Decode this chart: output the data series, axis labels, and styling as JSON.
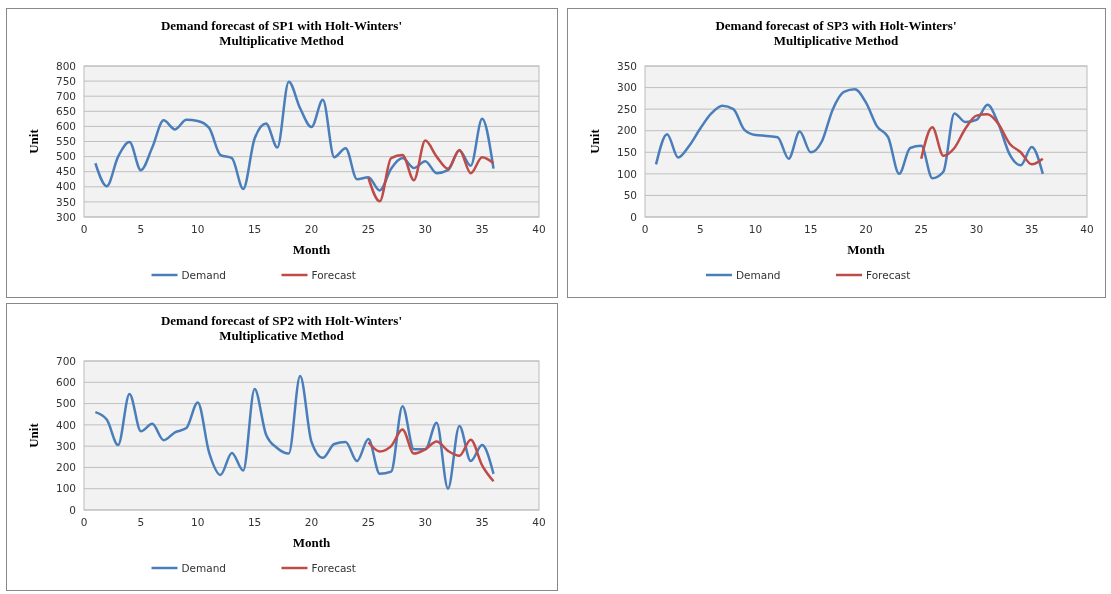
{
  "chart_data": [
    {
      "type": "line",
      "title": "Demand forecast of SP1 with Holt-Winters' Multiplicative Method",
      "xlabel": "Month",
      "ylabel": "Unit",
      "xlim": [
        0,
        40
      ],
      "xticks": [
        0,
        5,
        10,
        15,
        20,
        25,
        30,
        35,
        40
      ],
      "ylim": [
        300,
        800
      ],
      "yticks": [
        300,
        350,
        400,
        450,
        500,
        550,
        600,
        650,
        700,
        750,
        800
      ],
      "grid": "y",
      "legend": "bottom",
      "series": [
        {
          "name": "Demand",
          "color": "#4a7ebb",
          "x": [
            1,
            2,
            3,
            4,
            5,
            6,
            7,
            8,
            9,
            10,
            11,
            12,
            13,
            14,
            15,
            16,
            17,
            18,
            19,
            20,
            21,
            22,
            23,
            24,
            25,
            26,
            27,
            28,
            29,
            30,
            31,
            32,
            33,
            34,
            35,
            36
          ],
          "values": [
            478,
            402,
            500,
            548,
            455,
            530,
            620,
            590,
            622,
            618,
            595,
            505,
            495,
            393,
            560,
            610,
            530,
            748,
            660,
            598,
            688,
            498,
            528,
            425,
            432,
            388,
            460,
            495,
            462,
            485,
            445,
            455,
            520,
            470,
            625,
            460
          ]
        },
        {
          "name": "Forecast",
          "color": "#be4b48",
          "x": [
            25,
            26,
            27,
            28,
            29,
            30,
            31,
            32,
            33,
            34,
            35,
            36
          ],
          "values": [
            430,
            352,
            495,
            505,
            422,
            553,
            500,
            460,
            522,
            445,
            498,
            478
          ]
        }
      ]
    },
    {
      "type": "line",
      "title": "Demand forecast of SP3 with Holt-Winters' Multiplicative Method",
      "xlabel": "Month",
      "ylabel": "Unit",
      "xlim": [
        0,
        40
      ],
      "xticks": [
        0,
        5,
        10,
        15,
        20,
        25,
        30,
        35,
        40
      ],
      "ylim": [
        0,
        350
      ],
      "yticks": [
        0,
        50,
        100,
        150,
        200,
        250,
        300,
        350
      ],
      "grid": "y",
      "legend": "bottom",
      "series": [
        {
          "name": "Demand",
          "color": "#4a7ebb",
          "x": [
            1,
            2,
            3,
            4,
            5,
            6,
            7,
            8,
            9,
            10,
            11,
            12,
            13,
            14,
            15,
            16,
            17,
            18,
            19,
            20,
            21,
            22,
            23,
            24,
            25,
            26,
            27,
            28,
            29,
            30,
            31,
            32,
            33,
            34,
            35,
            36
          ],
          "values": [
            122,
            192,
            138,
            165,
            205,
            240,
            258,
            250,
            202,
            190,
            188,
            185,
            135,
            198,
            150,
            175,
            250,
            290,
            296,
            265,
            210,
            185,
            100,
            160,
            165,
            90,
            105,
            240,
            220,
            225,
            260,
            215,
            145,
            120,
            162,
            100
          ]
        },
        {
          "name": "Forecast",
          "color": "#be4b48",
          "x": [
            25,
            26,
            27,
            28,
            29,
            30,
            31,
            32,
            33,
            34,
            35,
            36
          ],
          "values": [
            135,
            208,
            142,
            160,
            205,
            235,
            238,
            215,
            170,
            150,
            122,
            135
          ]
        }
      ]
    },
    {
      "type": "line",
      "title": "Demand forecast of SP2 with Holt-Winters' Multiplicative Method",
      "xlabel": "Month",
      "ylabel": "Unit",
      "xlim": [
        0,
        40
      ],
      "xticks": [
        0,
        5,
        10,
        15,
        20,
        25,
        30,
        35,
        40
      ],
      "ylim": [
        0,
        700
      ],
      "yticks": [
        0,
        100,
        200,
        300,
        400,
        500,
        600,
        700
      ],
      "grid": "y",
      "legend": "bottom",
      "series": [
        {
          "name": "Demand",
          "color": "#4a7ebb",
          "x": [
            1,
            2,
            3,
            4,
            5,
            6,
            7,
            8,
            9,
            10,
            11,
            12,
            13,
            14,
            15,
            16,
            17,
            18,
            19,
            20,
            21,
            22,
            23,
            24,
            25,
            26,
            27,
            28,
            29,
            30,
            31,
            32,
            33,
            34,
            35,
            36
          ],
          "values": [
            460,
            425,
            305,
            545,
            370,
            405,
            328,
            365,
            385,
            505,
            270,
            165,
            268,
            185,
            568,
            355,
            290,
            265,
            630,
            320,
            245,
            310,
            320,
            230,
            333,
            170,
            180,
            488,
            285,
            285,
            410,
            100,
            395,
            230,
            305,
            170
          ]
        },
        {
          "name": "Forecast",
          "color": "#be4b48",
          "x": [
            25,
            26,
            27,
            28,
            29,
            30,
            31,
            32,
            33,
            34,
            35,
            36
          ],
          "values": [
            318,
            275,
            300,
            378,
            265,
            285,
            322,
            278,
            255,
            330,
            210,
            135
          ]
        }
      ]
    }
  ]
}
